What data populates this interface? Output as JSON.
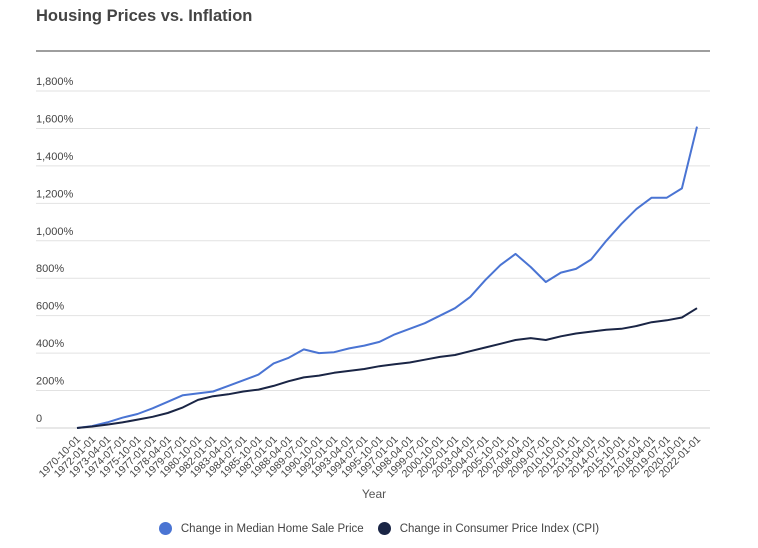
{
  "chart_data": {
    "type": "line",
    "title": "Housing Prices vs. Inflation",
    "xlabel": "Year",
    "ylabel": "",
    "ylim": [
      0,
      1800
    ],
    "yticks": [
      0,
      200,
      400,
      600,
      800,
      1000,
      1200,
      1400,
      1600,
      1800
    ],
    "ytick_labels": [
      "0",
      "200%",
      "400%",
      "600%",
      "800%",
      "1,000%",
      "1,200%",
      "1,400%",
      "1,600%",
      "1,800%"
    ],
    "grid": true,
    "legend_position": "bottom",
    "x": [
      "1970-10-01",
      "1972-01-01",
      "1973-04-01",
      "1974-07-01",
      "1975-10-01",
      "1977-01-01",
      "1978-04-01",
      "1979-07-01",
      "1980-10-01",
      "1982-01-01",
      "1983-04-01",
      "1984-07-01",
      "1985-10-01",
      "1987-01-01",
      "1988-04-01",
      "1989-07-01",
      "1990-10-01",
      "1992-01-01",
      "1993-04-01",
      "1994-07-01",
      "1995-10-01",
      "1997-01-01",
      "1998-04-01",
      "1999-07-01",
      "2000-10-01",
      "2002-01-01",
      "2003-04-01",
      "2004-07-01",
      "2005-10-01",
      "2007-01-01",
      "2008-04-01",
      "2009-07-01",
      "2010-10-01",
      "2012-01-01",
      "2013-04-01",
      "2014-07-01",
      "2015-10-01",
      "2017-01-01",
      "2018-04-01",
      "2019-07-01",
      "2020-10-01",
      "2022-01-01"
    ],
    "series": [
      {
        "name": "Change in Median Home Sale Price",
        "color": "#4a74d3",
        "values": [
          0,
          10,
          30,
          55,
          75,
          105,
          140,
          175,
          185,
          195,
          225,
          255,
          285,
          345,
          375,
          420,
          400,
          405,
          425,
          440,
          460,
          500,
          530,
          560,
          600,
          640,
          700,
          790,
          870,
          930,
          860,
          780,
          830,
          850,
          900,
          1000,
          1090,
          1170,
          1230,
          1230,
          1280,
          1610
        ]
      },
      {
        "name": "Change in Consumer Price Index (CPI)",
        "color": "#1a2545",
        "values": [
          0,
          8,
          18,
          30,
          45,
          60,
          80,
          110,
          150,
          170,
          180,
          195,
          205,
          225,
          250,
          270,
          280,
          295,
          305,
          315,
          330,
          340,
          350,
          365,
          380,
          390,
          410,
          430,
          450,
          470,
          480,
          470,
          490,
          505,
          515,
          525,
          530,
          545,
          565,
          575,
          590,
          640
        ]
      }
    ]
  }
}
